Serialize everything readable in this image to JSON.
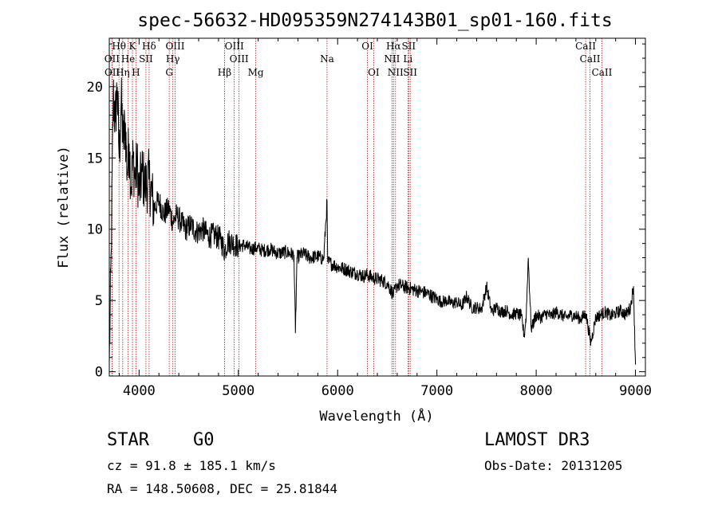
{
  "chart_data": {
    "type": "line",
    "title": "spec-56632-HD095359N274143B01_sp01-160.fits",
    "xlabel": "Wavelength (Å)",
    "ylabel": "Flux (relative)",
    "xlim": [
      3700,
      9100
    ],
    "ylim": [
      -0.3,
      23.4
    ],
    "xticks": [
      4000,
      5000,
      6000,
      7000,
      8000,
      9000
    ],
    "xtick_labels": [
      "4000",
      "5000",
      "6000",
      "7000",
      "8000",
      "9000"
    ],
    "yticks": [
      0,
      5,
      10,
      15,
      20
    ],
    "ytick_labels": [
      "0",
      "5",
      "10",
      "15",
      "20"
    ],
    "grid": false,
    "series": [
      {
        "name": "flux",
        "x": [
          3700,
          3720,
          3740,
          3760,
          3780,
          3800,
          3820,
          3840,
          3860,
          3880,
          3900,
          3920,
          3940,
          3960,
          3980,
          4000,
          4030,
          4060,
          4100,
          4150,
          4200,
          4250,
          4300,
          4340,
          4380,
          4420,
          4470,
          4520,
          4580,
          4640,
          4700,
          4760,
          4820,
          4861,
          4900,
          4950,
          5000,
          5060,
          5120,
          5180,
          5250,
          5320,
          5400,
          5480,
          5560,
          5575,
          5590,
          5650,
          5720,
          5800,
          5860,
          5893,
          5900,
          5960,
          6020,
          6080,
          6140,
          6200,
          6260,
          6300,
          6350,
          6400,
          6450,
          6500,
          6563,
          6600,
          6650,
          6700,
          6750,
          6800,
          6850,
          6900,
          6950,
          7000,
          7050,
          7100,
          7150,
          7200,
          7250,
          7300,
          7350,
          7400,
          7450,
          7500,
          7550,
          7600,
          7650,
          7700,
          7750,
          7800,
          7850,
          7880,
          7900,
          7920,
          7950,
          8000,
          8050,
          8100,
          8150,
          8200,
          8250,
          8300,
          8350,
          8400,
          8450,
          8500,
          8550,
          8600,
          8650,
          8700,
          8750,
          8800,
          8850,
          8900,
          8950,
          8980,
          9000
        ],
        "y": [
          0.5,
          8.5,
          19.5,
          17.5,
          20.0,
          15.0,
          19.0,
          16.0,
          17.5,
          14.0,
          16.0,
          13.0,
          15.0,
          13.5,
          14.5,
          12.5,
          14.0,
          13.0,
          13.5,
          11.5,
          12.0,
          11.0,
          11.5,
          10.5,
          11.0,
          10.5,
          10.0,
          10.3,
          9.8,
          10.0,
          9.5,
          9.6,
          9.3,
          8.5,
          9.2,
          9.0,
          8.8,
          8.9,
          8.6,
          8.7,
          8.5,
          8.6,
          8.3,
          8.4,
          8.2,
          2.7,
          8.0,
          8.3,
          8.0,
          8.1,
          7.9,
          12.0,
          7.7,
          7.5,
          7.3,
          7.2,
          7.0,
          6.9,
          6.7,
          6.8,
          6.6,
          6.5,
          6.4,
          6.2,
          5.4,
          6.1,
          6.0,
          5.9,
          5.8,
          5.7,
          5.6,
          5.5,
          5.3,
          5.1,
          4.9,
          5.0,
          4.8,
          4.9,
          4.6,
          5.3,
          4.5,
          4.5,
          4.4,
          6.0,
          4.2,
          4.5,
          4.2,
          4.3,
          4.0,
          4.1,
          3.9,
          2.5,
          4.0,
          8.0,
          3.0,
          4.0,
          3.8,
          4.1,
          3.9,
          4.2,
          4.0,
          3.8,
          4.0,
          3.9,
          3.7,
          4.1,
          2.0,
          3.8,
          4.0,
          4.2,
          3.9,
          4.1,
          4.3,
          4.0,
          4.5,
          6.0,
          0.5
        ]
      }
    ],
    "annotations": [
      {
        "label": "Hθ",
        "x": 3798,
        "row": 1
      },
      {
        "label": "K",
        "x": 3933,
        "row": 1
      },
      {
        "label": "Hδ",
        "x": 4101,
        "row": 1
      },
      {
        "label": "OIII",
        "x": 4363,
        "row": 1
      },
      {
        "label": "OIII",
        "x": 4959,
        "row": 1
      },
      {
        "label": "OI",
        "x": 6300,
        "row": 1
      },
      {
        "label": "Hα",
        "x": 6563,
        "row": 1
      },
      {
        "label": "SII",
        "x": 6716,
        "row": 1
      },
      {
        "label": "CaII",
        "x": 8498,
        "row": 1
      },
      {
        "label": "OII",
        "x": 3727,
        "row": 2
      },
      {
        "label": "He",
        "x": 3889,
        "row": 2
      },
      {
        "label": "SII",
        "x": 4069,
        "row": 2
      },
      {
        "label": "Hγ",
        "x": 4340,
        "row": 2
      },
      {
        "label": "OIII",
        "x": 5007,
        "row": 2
      },
      {
        "label": "Na",
        "x": 5893,
        "row": 2
      },
      {
        "label": "NII",
        "x": 6548,
        "row": 2
      },
      {
        "label": "Li",
        "x": 6708,
        "row": 2
      },
      {
        "label": "CaII",
        "x": 8542,
        "row": 2
      },
      {
        "label": "OII",
        "x": 3729,
        "row": 3
      },
      {
        "label": "Hη",
        "x": 3835,
        "row": 3
      },
      {
        "label": "H",
        "x": 3968,
        "row": 3
      },
      {
        "label": "G",
        "x": 4304,
        "row": 3
      },
      {
        "label": "Hβ",
        "x": 4861,
        "row": 3
      },
      {
        "label": "Mg",
        "x": 5175,
        "row": 3
      },
      {
        "label": "OI",
        "x": 6363,
        "row": 3
      },
      {
        "label": "NII",
        "x": 6583,
        "row": 3
      },
      {
        "label": "SII",
        "x": 6731,
        "row": 3
      },
      {
        "label": "CaII",
        "x": 8662,
        "row": 3
      }
    ]
  },
  "info": {
    "class": "STAR",
    "subclass": "G0",
    "survey": "LAMOST DR3",
    "redshift": "cz = 91.8 ± 185.1 km/s",
    "obs_date": "Obs-Date: 20131205",
    "coords": "RA = 148.50608, DEC =  25.81844"
  },
  "colors": {
    "line_marker": "#b22222",
    "spectrum": "#000000"
  }
}
